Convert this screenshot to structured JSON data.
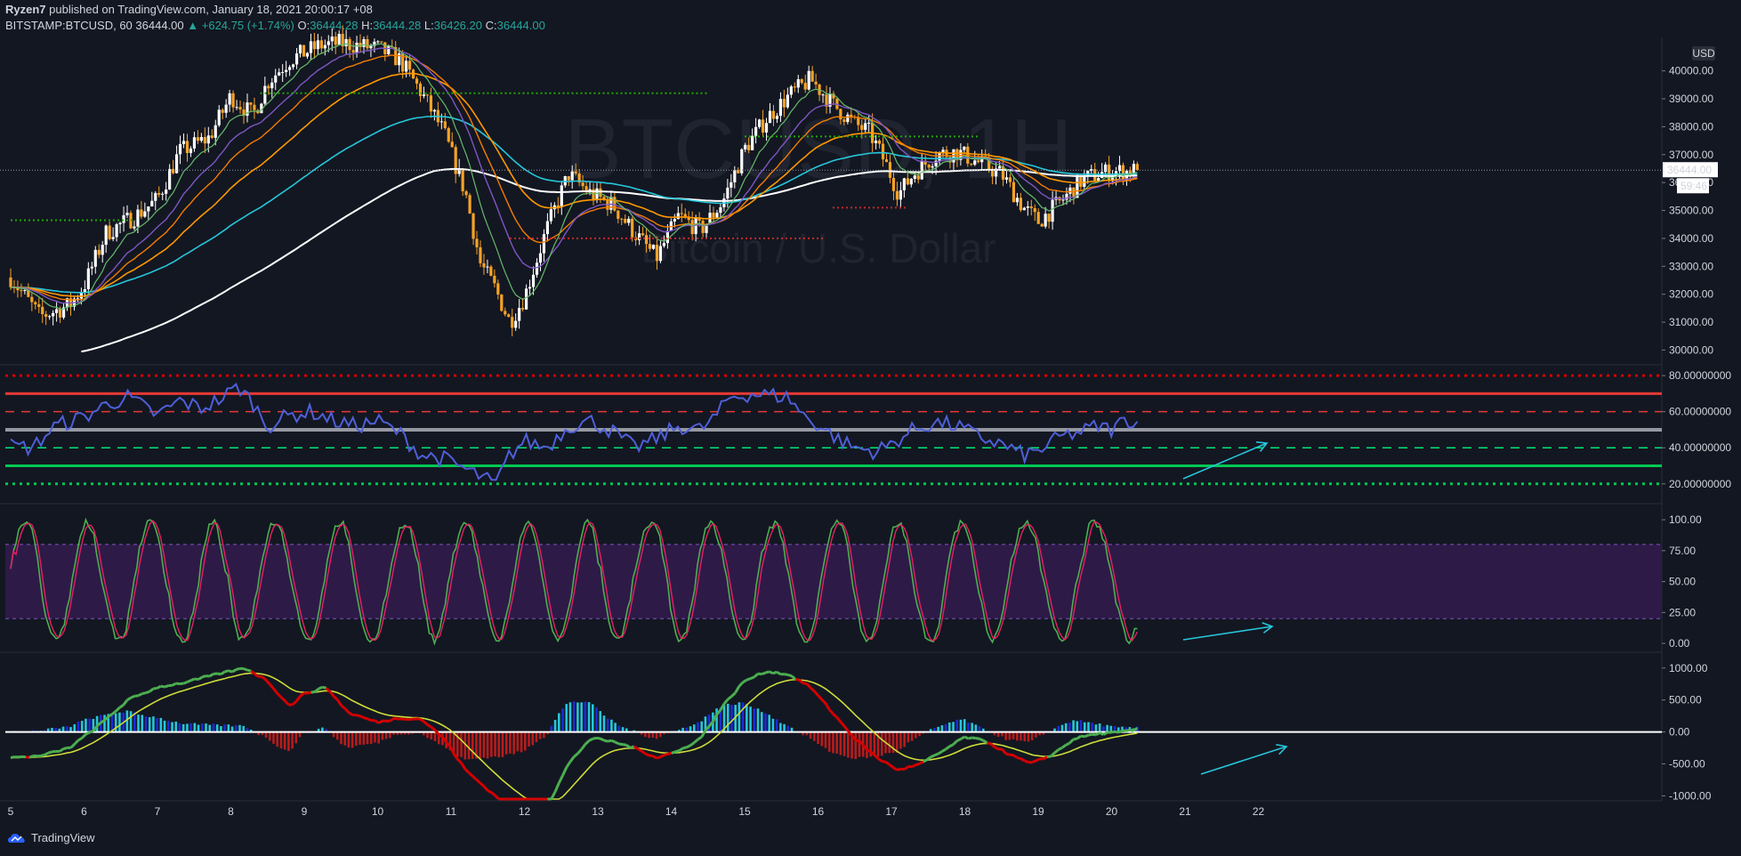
{
  "header": {
    "author": "Ryzen7",
    "published_text": "published on TradingView.com, January 18, 2021 20:00:17 +08",
    "symbol": "BITSTAMP:BTCUSD, 60",
    "last_price": "36444.00",
    "change": "▲ +624.75 (+1.74%)",
    "o_label": "O:",
    "o_value": "36444.28",
    "h_label": "H:",
    "h_value": "36444.28",
    "l_label": "L:",
    "l_value": "36426.20",
    "c_label": "C:",
    "c_value": "36444.00"
  },
  "watermark": {
    "line1": "BTCUSD, 1H",
    "line2": "Bitcoin / U.S. Dollar"
  },
  "footer": {
    "brand": "TradingView"
  },
  "currency_badge": "USD",
  "price_tag": {
    "price": "36444.00",
    "countdown": "59:46"
  },
  "colors": {
    "background": "#131722",
    "up": "#ffffff",
    "down": "#f7a326",
    "ema_white": "#ffffff",
    "ema_cyan": "#26c6da",
    "ema_orange": "#ff9800",
    "ema_green": "#66bb6a",
    "ema_purple": "#7e57c2",
    "rsi": "#4e5fd8",
    "stoch_k": "#4caf50",
    "stoch_d": "#e91e63",
    "stoch_band": "#2e1a47",
    "macd_up": "#26c6da",
    "macd_down": "#b71c1c",
    "arrow": "#26c6da"
  },
  "chart_data": [
    {
      "type": "candlestick",
      "name": "BITSTAMP:BTCUSD, 60",
      "x_label_ticks": [
        "5",
        "6",
        "7",
        "8",
        "9",
        "10",
        "11",
        "12",
        "13",
        "14",
        "15",
        "16",
        "17",
        "18",
        "19",
        "20",
        "21",
        "22"
      ],
      "y_ticks": [
        "40000.00",
        "39000.00",
        "38000.00",
        "37000.00",
        "36000.00",
        "35000.00",
        "34000.00",
        "33000.00",
        "32000.00",
        "31000.00",
        "30000.00"
      ],
      "ylim": [
        29600,
        41200
      ],
      "path_points": [
        [
          0,
          32600
        ],
        [
          0.4,
          31200
        ],
        [
          0.8,
          31600
        ],
        [
          1,
          32300
        ],
        [
          1.3,
          34200
        ],
        [
          1.7,
          34800
        ],
        [
          2,
          35400
        ],
        [
          2.3,
          37100
        ],
        [
          2.7,
          37600
        ],
        [
          3,
          39100
        ],
        [
          3.3,
          38400
        ],
        [
          3.5,
          39600
        ],
        [
          3.8,
          40400
        ],
        [
          4.2,
          40900
        ],
        [
          4.5,
          41000
        ],
        [
          5,
          40800
        ],
        [
          5.3,
          40400
        ],
        [
          5.6,
          39200
        ],
        [
          5.9,
          37800
        ],
        [
          6.2,
          35600
        ],
        [
          6.4,
          33100
        ],
        [
          6.6,
          32200
        ],
        [
          6.8,
          31000
        ],
        [
          7,
          31900
        ],
        [
          7.3,
          34300
        ],
        [
          7.6,
          36300
        ],
        [
          7.9,
          35600
        ],
        [
          8.2,
          35200
        ],
        [
          8.5,
          34200
        ],
        [
          8.8,
          33300
        ],
        [
          9.1,
          34800
        ],
        [
          9.4,
          34300
        ],
        [
          9.7,
          35300
        ],
        [
          10,
          37200
        ],
        [
          10.3,
          38300
        ],
        [
          10.6,
          39100
        ],
        [
          10.9,
          39700
        ],
        [
          11.2,
          38800
        ],
        [
          11.5,
          38100
        ],
        [
          11.7,
          37800
        ],
        [
          11.9,
          36800
        ],
        [
          12.1,
          35600
        ],
        [
          12.3,
          36300
        ],
        [
          12.6,
          37000
        ],
        [
          12.9,
          37100
        ],
        [
          13.2,
          36700
        ],
        [
          13.5,
          36300
        ],
        [
          13.8,
          35100
        ],
        [
          14,
          34600
        ],
        [
          14.3,
          35300
        ],
        [
          14.6,
          36100
        ],
        [
          14.8,
          36300
        ],
        [
          15,
          36400
        ],
        [
          15.2,
          36400
        ],
        [
          15.35,
          36444
        ]
      ]
    },
    {
      "type": "line",
      "name": "RSI",
      "y_ticks": [
        "80.00000000",
        "60.00000000",
        "40.00000000",
        "20.00000000"
      ],
      "ylim": [
        12,
        85
      ],
      "levels": [
        80,
        70,
        60,
        50,
        40,
        30,
        20
      ],
      "points": [
        [
          0,
          41
        ],
        [
          0.3,
          40
        ],
        [
          0.6,
          52
        ],
        [
          1,
          57
        ],
        [
          1.3,
          64
        ],
        [
          1.6,
          68
        ],
        [
          2,
          58
        ],
        [
          2.3,
          66
        ],
        [
          2.6,
          62
        ],
        [
          2.9,
          68
        ],
        [
          3.1,
          74
        ],
        [
          3.3,
          65
        ],
        [
          3.5,
          52
        ],
        [
          3.8,
          58
        ],
        [
          4.1,
          60
        ],
        [
          4.4,
          55
        ],
        [
          4.7,
          52
        ],
        [
          5,
          55
        ],
        [
          5.3,
          48
        ],
        [
          5.6,
          36
        ],
        [
          5.9,
          34
        ],
        [
          6.2,
          28
        ],
        [
          6.5,
          22
        ],
        [
          6.6,
          19
        ],
        [
          6.8,
          36
        ],
        [
          7,
          44
        ],
        [
          7.3,
          40
        ],
        [
          7.6,
          52
        ],
        [
          7.9,
          55
        ],
        [
          8.2,
          49
        ],
        [
          8.5,
          40
        ],
        [
          8.8,
          45
        ],
        [
          9.1,
          52
        ],
        [
          9.4,
          50
        ],
        [
          9.6,
          57
        ],
        [
          9.8,
          68
        ],
        [
          10.1,
          70
        ],
        [
          10.4,
          69
        ],
        [
          10.6,
          68
        ],
        [
          10.8,
          58
        ],
        [
          11.1,
          50
        ],
        [
          11.3,
          44
        ],
        [
          11.5,
          40
        ],
        [
          11.8,
          38
        ],
        [
          12,
          42
        ],
        [
          12.3,
          50
        ],
        [
          12.6,
          54
        ],
        [
          12.9,
          52
        ],
        [
          13.2,
          46
        ],
        [
          13.5,
          42
        ],
        [
          13.8,
          36
        ],
        [
          14,
          38
        ],
        [
          14.3,
          46
        ],
        [
          14.6,
          49
        ],
        [
          14.8,
          52
        ],
        [
          15,
          50
        ],
        [
          15.2,
          56
        ],
        [
          15.35,
          54
        ]
      ]
    },
    {
      "type": "line",
      "name": "Stoch RSI",
      "y_ticks": [
        "100.00",
        "75.00",
        "50.00",
        "25.00",
        "0.00"
      ],
      "ylim": [
        -5,
        108
      ],
      "band": [
        20,
        80
      ]
    },
    {
      "type": "bar",
      "name": "MACD",
      "y_ticks": [
        "1000.00",
        "500.00",
        "0.00",
        "-500.00",
        "-1000.00"
      ],
      "ylim": [
        -1050,
        1150
      ],
      "macd_points": [
        [
          0,
          -400
        ],
        [
          0.4,
          -380
        ],
        [
          0.8,
          -250
        ],
        [
          1.2,
          100
        ],
        [
          1.6,
          500
        ],
        [
          2,
          700
        ],
        [
          2.4,
          780
        ],
        [
          2.8,
          900
        ],
        [
          3.2,
          1000
        ],
        [
          3.5,
          800
        ],
        [
          3.8,
          400
        ],
        [
          4,
          600
        ],
        [
          4.3,
          700
        ],
        [
          4.6,
          300
        ],
        [
          5,
          150
        ],
        [
          5.3,
          220
        ],
        [
          5.6,
          200
        ],
        [
          5.9,
          -100
        ],
        [
          6.2,
          -600
        ],
        [
          6.5,
          -900
        ],
        [
          6.7,
          -1100
        ],
        [
          7,
          -1300
        ],
        [
          7.3,
          -1200
        ],
        [
          7.6,
          -500
        ],
        [
          7.9,
          -100
        ],
        [
          8.2,
          -150
        ],
        [
          8.5,
          -250
        ],
        [
          8.8,
          -400
        ],
        [
          9.1,
          -300
        ],
        [
          9.4,
          -100
        ],
        [
          9.7,
          400
        ],
        [
          10,
          800
        ],
        [
          10.3,
          950
        ],
        [
          10.6,
          900
        ],
        [
          10.9,
          700
        ],
        [
          11.2,
          300
        ],
        [
          11.5,
          -100
        ],
        [
          11.8,
          -400
        ],
        [
          12.1,
          -600
        ],
        [
          12.4,
          -500
        ],
        [
          12.7,
          -300
        ],
        [
          13,
          -80
        ],
        [
          13.3,
          -150
        ],
        [
          13.6,
          -350
        ],
        [
          13.9,
          -500
        ],
        [
          14.2,
          -350
        ],
        [
          14.5,
          -100
        ],
        [
          14.8,
          -30
        ],
        [
          15.1,
          -10
        ],
        [
          15.35,
          40
        ]
      ]
    }
  ]
}
